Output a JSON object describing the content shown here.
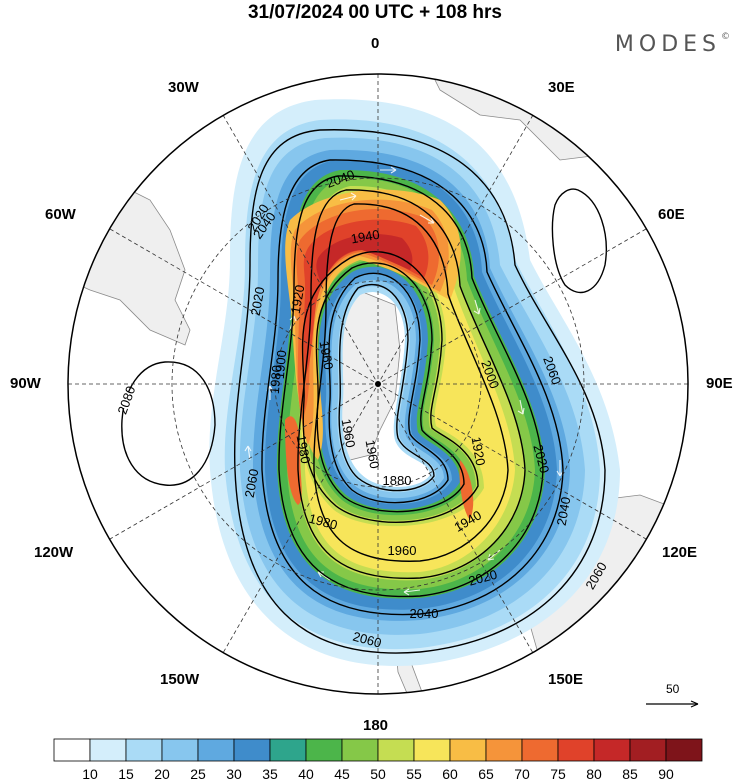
{
  "title": "31/07/2024  00 UTC  + 108 hrs",
  "logo": "MODES",
  "logo_mark": "©",
  "longitude_labels": {
    "n": "0",
    "s": "180",
    "e": "90E",
    "w": "90W",
    "e30": "30E",
    "e60": "60E",
    "e120": "120E",
    "e150": "150E",
    "w30": "30W",
    "w60": "60W",
    "w120": "120W",
    "w150": "150W"
  },
  "contour_labels": [
    "2080",
    "2060",
    "2060",
    "2060",
    "2060",
    "2040",
    "2040",
    "2040",
    "2040",
    "2020",
    "2020",
    "2020",
    "2020",
    "2000",
    "1980",
    "1980",
    "1980",
    "1960",
    "1960",
    "1960",
    "1960",
    "1940",
    "1940",
    "1920",
    "1920",
    "1900",
    "1880"
  ],
  "colorbar": {
    "labels": [
      "10",
      "15",
      "20",
      "25",
      "30",
      "35",
      "40",
      "45",
      "50",
      "55",
      "60",
      "65",
      "70",
      "75",
      "80",
      "85",
      "90"
    ],
    "colors": [
      "#ffffff",
      "#d4eefb",
      "#aadbf6",
      "#87c6ee",
      "#5fa9e0",
      "#3f8ccb",
      "#2ea58c",
      "#4cb54a",
      "#85c848",
      "#c5dd52",
      "#f7e55a",
      "#f8bd45",
      "#f5943a",
      "#ee6a30",
      "#e0422a",
      "#c52828",
      "#a21e22",
      "#7e141a"
    ]
  },
  "reference_vector": "50"
}
